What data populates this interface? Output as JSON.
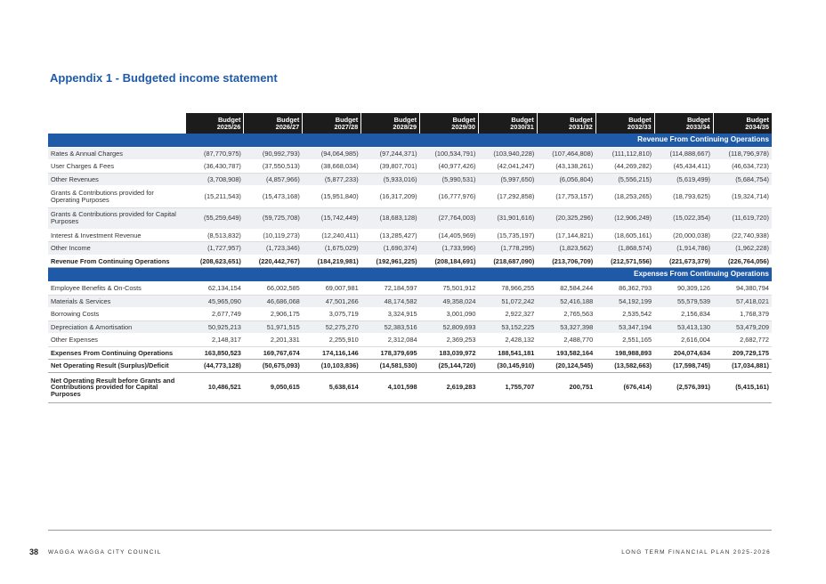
{
  "title": "Appendix 1 - Budgeted income statement",
  "columns": [
    {
      "line1": "Budget",
      "line2": "2025/26"
    },
    {
      "line1": "Budget",
      "line2": "2026/27"
    },
    {
      "line1": "Budget",
      "line2": "2027/28"
    },
    {
      "line1": "Budget",
      "line2": "2028/29"
    },
    {
      "line1": "Budget",
      "line2": "2029/30"
    },
    {
      "line1": "Budget",
      "line2": "2030/31"
    },
    {
      "line1": "Budget",
      "line2": "2031/32"
    },
    {
      "line1": "Budget",
      "line2": "2032/33"
    },
    {
      "line1": "Budget",
      "line2": "2033/34"
    },
    {
      "line1": "Budget",
      "line2": "2034/35"
    }
  ],
  "sections": [
    {
      "heading": "Revenue From Continuing Operations",
      "rows": [
        {
          "label": "Rates & Annual Charges",
          "style": "alt",
          "values": [
            "(87,770,975)",
            "(90,992,793)",
            "(94,064,985)",
            "(97,244,371)",
            "(100,534,791)",
            "(103,940,228)",
            "(107,464,808)",
            "(111,112,810)",
            "(114,888,667)",
            "(118,796,978)"
          ]
        },
        {
          "label": "User Charges & Fees",
          "style": "row",
          "values": [
            "(36,430,787)",
            "(37,550,513)",
            "(38,668,034)",
            "(39,807,701)",
            "(40,977,426)",
            "(42,041,247)",
            "(43,138,261)",
            "(44,269,282)",
            "(45,434,411)",
            "(46,634,723)"
          ]
        },
        {
          "label": "Other Revenues",
          "style": "alt",
          "values": [
            "(3,708,908)",
            "(4,857,966)",
            "(5,877,233)",
            "(5,933,016)",
            "(5,990,531)",
            "(5,997,650)",
            "(6,056,804)",
            "(5,556,215)",
            "(5,619,499)",
            "(5,684,754)"
          ]
        },
        {
          "label": "Grants & Contributions provided for Operating Purposes",
          "style": "row tall",
          "values": [
            "(15,211,543)",
            "(15,473,168)",
            "(15,951,840)",
            "(16,317,209)",
            "(16,777,976)",
            "(17,292,858)",
            "(17,753,157)",
            "(18,253,265)",
            "(18,793,625)",
            "(19,324,714)"
          ]
        },
        {
          "label": "Grants & Contributions provided for Capital Purposes",
          "style": "alt tall",
          "values": [
            "(55,259,649)",
            "(59,725,708)",
            "(15,742,449)",
            "(18,683,128)",
            "(27,764,003)",
            "(31,901,616)",
            "(20,325,296)",
            "(12,906,249)",
            "(15,022,354)",
            "(11,619,720)"
          ]
        },
        {
          "label": "Interest & Investment Revenue",
          "style": "row",
          "values": [
            "(8,513,832)",
            "(10,119,273)",
            "(12,240,411)",
            "(13,285,427)",
            "(14,405,969)",
            "(15,735,197)",
            "(17,144,821)",
            "(18,605,161)",
            "(20,000,038)",
            "(22,740,938)"
          ]
        },
        {
          "label": "Other Income",
          "style": "alt",
          "values": [
            "(1,727,957)",
            "(1,723,346)",
            "(1,675,029)",
            "(1,690,374)",
            "(1,733,996)",
            "(1,778,295)",
            "(1,823,562)",
            "(1,868,574)",
            "(1,914,786)",
            "(1,962,228)"
          ]
        },
        {
          "label": "Revenue From Continuing Operations",
          "style": "total",
          "values": [
            "(208,623,651)",
            "(220,442,767)",
            "(184,219,981)",
            "(192,961,225)",
            "(208,184,691)",
            "(218,687,090)",
            "(213,706,709)",
            "(212,571,556)",
            "(221,673,379)",
            "(226,764,056)"
          ]
        }
      ]
    },
    {
      "heading": "Expenses From Continuing Operations",
      "rows": [
        {
          "label": "Employee Benefits & On-Costs",
          "style": "row",
          "values": [
            "62,134,154",
            "66,002,585",
            "69,007,981",
            "72,184,597",
            "75,501,912",
            "78,966,255",
            "82,584,244",
            "86,362,793",
            "90,309,126",
            "94,380,794"
          ]
        },
        {
          "label": "Materials & Services",
          "style": "alt",
          "values": [
            "45,965,090",
            "46,686,068",
            "47,501,266",
            "48,174,582",
            "49,358,024",
            "51,072,242",
            "52,416,188",
            "54,192,199",
            "55,579,539",
            "57,418,021"
          ]
        },
        {
          "label": "Borrowing Costs",
          "style": "row",
          "values": [
            "2,677,749",
            "2,906,175",
            "3,075,719",
            "3,324,915",
            "3,001,090",
            "2,922,327",
            "2,765,563",
            "2,535,542",
            "2,156,834",
            "1,768,379"
          ]
        },
        {
          "label": "Depreciation & Amortisation",
          "style": "alt",
          "values": [
            "50,925,213",
            "51,971,515",
            "52,275,270",
            "52,383,516",
            "52,809,693",
            "53,152,225",
            "53,327,398",
            "53,347,194",
            "53,413,130",
            "53,479,209"
          ]
        },
        {
          "label": "Other Expenses",
          "style": "row",
          "values": [
            "2,148,317",
            "2,201,331",
            "2,255,910",
            "2,312,084",
            "2,369,253",
            "2,428,132",
            "2,488,770",
            "2,551,165",
            "2,616,004",
            "2,682,772"
          ]
        },
        {
          "label": "Expenses From Continuing Operations",
          "style": "total",
          "values": [
            "163,850,523",
            "169,767,674",
            "174,116,146",
            "178,379,695",
            "183,039,972",
            "188,541,181",
            "193,582,164",
            "198,988,893",
            "204,074,634",
            "209,729,175"
          ]
        },
        {
          "label": "Net Operating Result (Surplus)/Deficit",
          "style": "total",
          "values": [
            "(44,773,128)",
            "(50,675,093)",
            "(10,103,836)",
            "(14,581,530)",
            "(25,144,720)",
            "(30,145,910)",
            "(20,124,545)",
            "(13,582,663)",
            "(17,598,745)",
            "(17,034,881)"
          ]
        },
        {
          "label": "Net Operating Result before Grants and Contributions provided for Capital Purposes",
          "style": "total xtall",
          "values": [
            "10,486,521",
            "9,050,615",
            "5,638,614",
            "4,101,598",
            "2,619,283",
            "1,755,707",
            "200,751",
            "(676,414)",
            "(2,576,391)",
            "(5,415,161)"
          ]
        }
      ]
    }
  ],
  "footer": {
    "page_number": "38",
    "council": "WAGGA WAGGA CITY COUNCIL",
    "plan": "LONG TERM FINANCIAL PLAN 2025-2026"
  }
}
